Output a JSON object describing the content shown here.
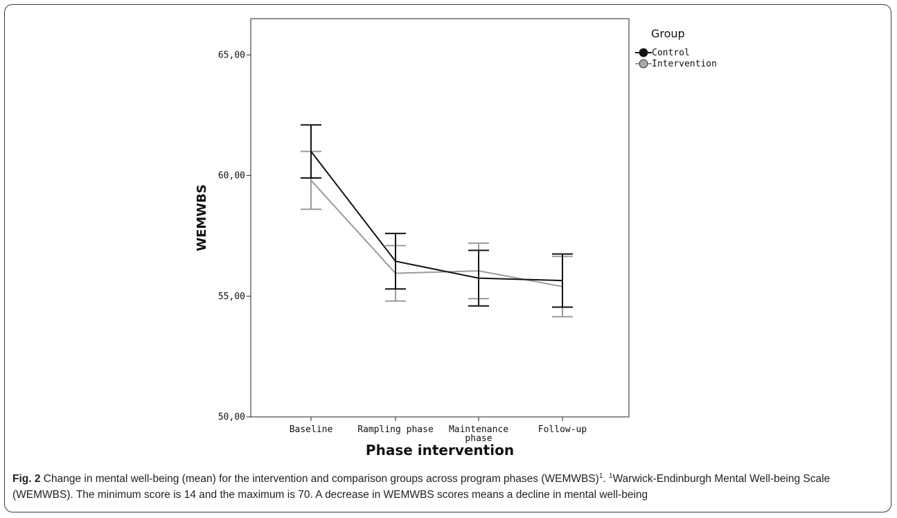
{
  "chart_data": {
    "type": "line",
    "categories": [
      "Baseline",
      "Rampling phase",
      "Maintenance phase",
      "Follow-up"
    ],
    "category_labels": [
      [
        "Baseline"
      ],
      [
        "Rampling phase"
      ],
      [
        "Maintenance",
        "phase"
      ],
      [
        "Follow-up"
      ]
    ],
    "series": [
      {
        "name": "Control",
        "color": "#111111",
        "values": [
          61.0,
          56.45,
          55.75,
          55.65
        ],
        "error_low": [
          59.9,
          55.3,
          54.6,
          54.55
        ],
        "error_high": [
          62.1,
          57.6,
          56.9,
          56.75
        ]
      },
      {
        "name": "Intervention",
        "color": "#9a9a9a",
        "values": [
          59.8,
          55.95,
          56.05,
          55.4
        ],
        "error_low": [
          58.6,
          54.8,
          54.9,
          54.15
        ],
        "error_high": [
          61.0,
          57.1,
          57.2,
          56.65
        ]
      }
    ],
    "xlabel": "Phase intervention",
    "ylabel": "WEMWBS",
    "ylim": [
      50,
      66.5
    ],
    "yticks": [
      50,
      55,
      60,
      65
    ],
    "ytick_labels": [
      "50,00",
      "55,00",
      "60,00",
      "65,00"
    ],
    "legend_title": "Group",
    "legend_position": "top-right",
    "grid": false
  },
  "caption": {
    "label": "Fig. 2",
    "text_1": " Change in mental well-being (mean) for the intervention and comparison groups across program phases (WEMWBS)",
    "sup_1": "1",
    "text_2": ". ",
    "sup_2": "1",
    "text_3": "Warwick-Endinburgh Mental Well-being Scale (WEMWBS). The minimum score is 14 and the maximum is 70. A decrease in WEMWBS scores means a decline in mental well-being"
  }
}
